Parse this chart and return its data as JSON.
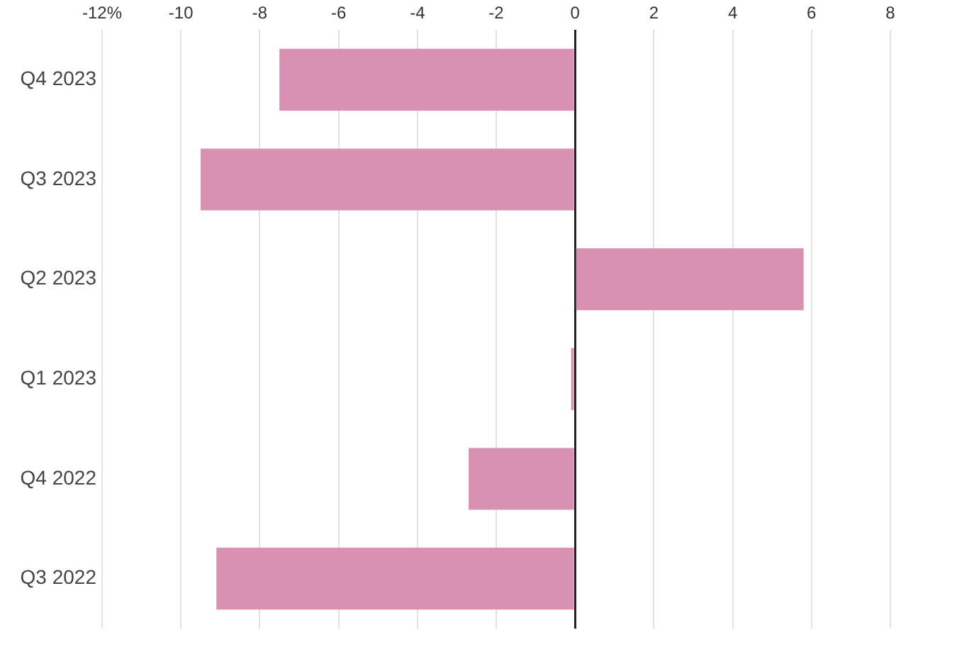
{
  "chart_data": {
    "type": "bar",
    "orientation": "horizontal",
    "categories": [
      "Q4 2023",
      "Q3 2023",
      "Q2 2023",
      "Q1 2023",
      "Q4 2022",
      "Q3 2022"
    ],
    "values": [
      -7.5,
      -9.5,
      5.8,
      -0.1,
      -2.7,
      -9.1
    ],
    "color": "#d891b1",
    "xlim": [
      -12,
      8
    ],
    "xticks": [
      {
        "value": -12,
        "label": "-12%"
      },
      -10,
      -8,
      -6,
      -4,
      -2,
      0,
      2,
      4,
      6,
      8
    ],
    "grid": "x"
  }
}
